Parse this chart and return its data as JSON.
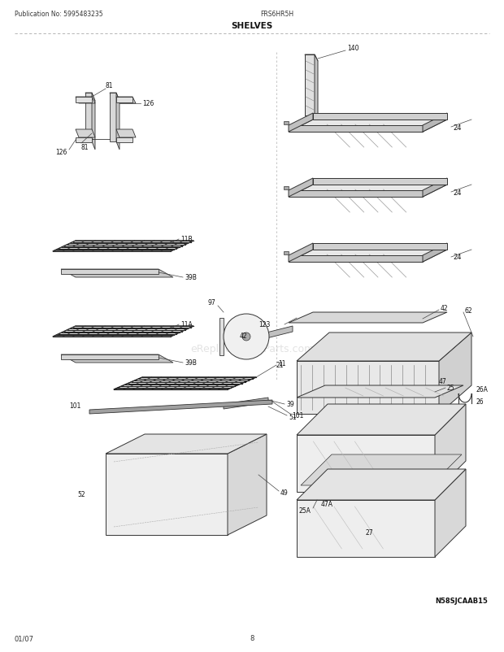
{
  "title": "SHELVES",
  "pub_no": "Publication No: 5995483235",
  "model": "FRS6HR5H",
  "date": "01/07",
  "page": "8",
  "watermark": "eReplacementParts.com",
  "diagram_id": "N58SJCAAB15",
  "bg_color": "#ffffff",
  "line_color": "#333333",
  "label_color": "#111111"
}
